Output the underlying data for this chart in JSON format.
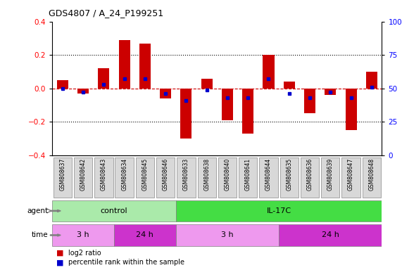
{
  "title": "GDS4807 / A_24_P199251",
  "samples": [
    "GSM808637",
    "GSM808642",
    "GSM808643",
    "GSM808634",
    "GSM808645",
    "GSM808646",
    "GSM808633",
    "GSM808638",
    "GSM808640",
    "GSM808641",
    "GSM808644",
    "GSM808635",
    "GSM808636",
    "GSM808639",
    "GSM808647",
    "GSM808648"
  ],
  "log2_ratio": [
    0.05,
    -0.03,
    0.12,
    0.29,
    0.27,
    -0.06,
    -0.3,
    0.06,
    -0.19,
    -0.27,
    0.2,
    0.04,
    -0.15,
    -0.04,
    -0.25,
    0.1
  ],
  "percentile": [
    50,
    47,
    53,
    57,
    57,
    46,
    41,
    49,
    43,
    43,
    57,
    46,
    43,
    47,
    43,
    51
  ],
  "ylim": [
    -0.4,
    0.4
  ],
  "yticks_left": [
    -0.4,
    -0.2,
    0.0,
    0.2,
    0.4
  ],
  "yticks_right_vals": [
    0,
    25,
    50,
    75,
    100
  ],
  "bar_color": "#cc0000",
  "dot_color": "#0000cc",
  "hline_color": "#cc0000",
  "bg_color": "#ffffff",
  "agent_groups": [
    {
      "label": "control",
      "start": 0,
      "end": 6,
      "color": "#aaeaaa"
    },
    {
      "label": "IL-17C",
      "start": 6,
      "end": 16,
      "color": "#44dd44"
    }
  ],
  "time_groups": [
    {
      "label": "3 h",
      "start": 0,
      "end": 3,
      "color": "#ee99ee"
    },
    {
      "label": "24 h",
      "start": 3,
      "end": 6,
      "color": "#cc33cc"
    },
    {
      "label": "3 h",
      "start": 6,
      "end": 11,
      "color": "#ee99ee"
    },
    {
      "label": "24 h",
      "start": 11,
      "end": 16,
      "color": "#cc33cc"
    }
  ],
  "legend_red": "log2 ratio",
  "legend_blue": "percentile rank within the sample",
  "bar_width": 0.55,
  "sample_box_color": "#d8d8d8",
  "sample_box_edge": "#888888"
}
